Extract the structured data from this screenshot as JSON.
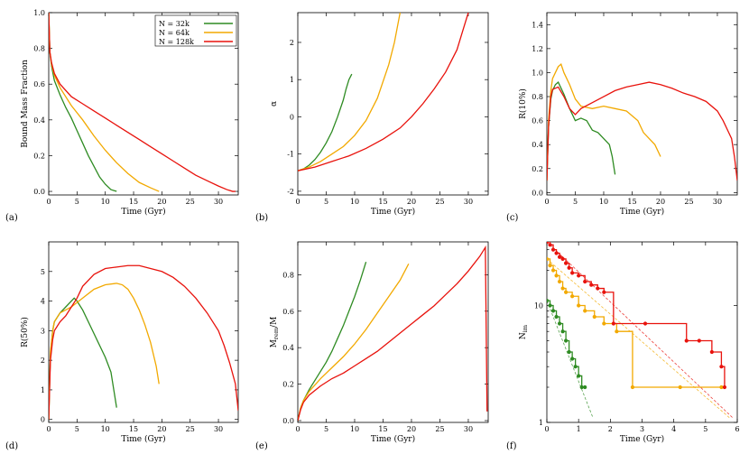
{
  "colors": {
    "green": "#2e8b22",
    "orange": "#f2a900",
    "red": "#e8120c"
  },
  "legend": {
    "entries": [
      {
        "label": "N =  32k",
        "color": "#2e8b22"
      },
      {
        "label": "N =  64k",
        "color": "#f2a900"
      },
      {
        "label": "N = 128k",
        "color": "#e8120c"
      }
    ]
  },
  "chart_data": [
    {
      "panel": "(a)",
      "type": "line",
      "xlabel": "Time (Gyr)",
      "ylabel": "Bound Mass Fraction",
      "xlim": [
        0,
        33.5
      ],
      "ylim": [
        -0.02,
        1.0
      ],
      "xticks": [
        0,
        5,
        10,
        15,
        20,
        25,
        30
      ],
      "yticks": [
        0.0,
        0.2,
        0.4,
        0.6,
        0.8,
        1.0
      ],
      "ytick_labels": [
        "0.0",
        "0.2",
        "0.4",
        "0.6",
        "0.8",
        "1.0"
      ],
      "series": [
        {
          "name": "N =  32k",
          "color": "#2e8b22",
          "x": [
            0,
            0.2,
            0.5,
            1,
            2,
            3,
            4,
            5,
            6,
            7,
            8,
            9,
            10,
            11,
            12
          ],
          "y": [
            1.0,
            0.78,
            0.7,
            0.62,
            0.54,
            0.47,
            0.41,
            0.34,
            0.27,
            0.2,
            0.14,
            0.08,
            0.04,
            0.01,
            0.0
          ]
        },
        {
          "name": "N =  64k",
          "color": "#f2a900",
          "x": [
            0,
            0.2,
            0.5,
            1,
            2,
            4,
            6,
            8,
            10,
            12,
            14,
            16,
            18,
            19.5
          ],
          "y": [
            1.0,
            0.78,
            0.71,
            0.65,
            0.58,
            0.48,
            0.4,
            0.31,
            0.23,
            0.16,
            0.1,
            0.05,
            0.02,
            0.0
          ]
        },
        {
          "name": "N = 128k",
          "color": "#e8120c",
          "x": [
            0,
            0.2,
            0.5,
            1,
            2,
            4,
            6,
            8,
            10,
            12,
            14,
            16,
            18,
            20,
            22,
            24,
            26,
            28,
            30,
            31.5,
            32.5,
            33
          ],
          "y": [
            1.0,
            0.78,
            0.72,
            0.66,
            0.6,
            0.53,
            0.49,
            0.45,
            0.41,
            0.37,
            0.33,
            0.29,
            0.25,
            0.21,
            0.17,
            0.13,
            0.09,
            0.06,
            0.03,
            0.01,
            0.0,
            0.0
          ]
        }
      ]
    },
    {
      "panel": "(b)",
      "type": "line",
      "xlabel": "Time (Gyr)",
      "ylabel": "α",
      "xlim": [
        0,
        33.5
      ],
      "ylim": [
        -2.1,
        2.8
      ],
      "xticks": [
        0,
        5,
        10,
        15,
        20,
        25,
        30
      ],
      "yticks": [
        -2,
        -1,
        0,
        1,
        2
      ],
      "ytick_labels": [
        "-2",
        "-1",
        "0",
        "1",
        "2"
      ],
      "series": [
        {
          "name": "N =  32k",
          "color": "#2e8b22",
          "x": [
            0,
            1,
            2,
            3,
            4,
            5,
            6,
            7,
            8,
            8.5,
            9,
            9.5
          ],
          "y": [
            -1.45,
            -1.4,
            -1.3,
            -1.15,
            -0.95,
            -0.7,
            -0.4,
            0.0,
            0.45,
            0.75,
            1.0,
            1.15
          ]
        },
        {
          "name": "N =  64k",
          "color": "#f2a900",
          "x": [
            0,
            2,
            4,
            6,
            8,
            10,
            12,
            14,
            16,
            17,
            18
          ],
          "y": [
            -1.45,
            -1.35,
            -1.2,
            -1.0,
            -0.8,
            -0.5,
            -0.1,
            0.5,
            1.4,
            2.0,
            2.8
          ]
        },
        {
          "name": "N = 128k",
          "color": "#e8120c",
          "x": [
            0,
            3,
            6,
            9,
            12,
            15,
            18,
            20,
            22,
            24,
            26,
            28,
            29,
            30
          ],
          "y": [
            -1.45,
            -1.35,
            -1.2,
            -1.05,
            -0.85,
            -0.6,
            -0.3,
            0.0,
            0.35,
            0.75,
            1.2,
            1.8,
            2.3,
            2.8
          ]
        }
      ]
    },
    {
      "panel": "(c)",
      "type": "line",
      "xlabel": "Time (Gyr)",
      "ylabel": "R(10%)",
      "xlim": [
        0,
        33.5
      ],
      "ylim": [
        -0.02,
        1.5
      ],
      "xticks": [
        0,
        5,
        10,
        15,
        20,
        25,
        30
      ],
      "yticks": [
        0.0,
        0.2,
        0.4,
        0.6,
        0.8,
        1.0,
        1.2,
        1.4
      ],
      "ytick_labels": [
        "0.0",
        "0.2",
        "0.4",
        "0.6",
        "0.8",
        "1.0",
        "1.2",
        "1.4"
      ],
      "series": [
        {
          "name": "N =  32k",
          "color": "#2e8b22",
          "x": [
            0,
            0.3,
            0.7,
            1,
            1.5,
            2,
            3,
            4,
            5,
            6,
            7,
            8,
            9,
            10,
            11,
            11.5,
            12
          ],
          "y": [
            0.1,
            0.55,
            0.78,
            0.85,
            0.9,
            0.92,
            0.82,
            0.7,
            0.6,
            0.62,
            0.6,
            0.52,
            0.5,
            0.45,
            0.4,
            0.3,
            0.15
          ]
        },
        {
          "name": "N =  64k",
          "color": "#f2a900",
          "x": [
            0,
            0.3,
            0.7,
            1,
            2,
            2.5,
            3,
            4,
            5,
            6,
            8,
            10,
            12,
            14,
            16,
            17,
            18,
            19,
            20
          ],
          "y": [
            0.1,
            0.6,
            0.85,
            0.95,
            1.05,
            1.07,
            1.0,
            0.9,
            0.78,
            0.72,
            0.7,
            0.72,
            0.7,
            0.68,
            0.6,
            0.5,
            0.45,
            0.4,
            0.3
          ]
        },
        {
          "name": "N = 128k",
          "color": "#e8120c",
          "x": [
            0,
            0.3,
            0.7,
            1,
            2,
            3,
            4,
            5,
            6,
            8,
            10,
            12,
            14,
            16,
            18,
            20,
            22,
            24,
            26,
            28,
            30,
            31,
            32,
            32.5,
            33,
            33.5
          ],
          "y": [
            0.1,
            0.55,
            0.8,
            0.86,
            0.88,
            0.8,
            0.7,
            0.65,
            0.7,
            0.75,
            0.8,
            0.85,
            0.88,
            0.9,
            0.92,
            0.9,
            0.87,
            0.83,
            0.8,
            0.76,
            0.68,
            0.6,
            0.5,
            0.45,
            0.3,
            0.1
          ]
        }
      ]
    },
    {
      "panel": "(d)",
      "type": "line",
      "xlabel": "Time (Gyr)",
      "ylabel": "R(50%)",
      "xlim": [
        0,
        33.5
      ],
      "ylim": [
        -0.1,
        6.0
      ],
      "xticks": [
        0,
        5,
        10,
        15,
        20,
        25,
        30
      ],
      "yticks": [
        0,
        1,
        2,
        3,
        4,
        5
      ],
      "ytick_labels": [
        "0",
        "1",
        "2",
        "3",
        "4",
        "5"
      ],
      "series": [
        {
          "name": "N =  32k",
          "color": "#2e8b22",
          "x": [
            0,
            0.3,
            0.7,
            1,
            2,
            3,
            4,
            4.5,
            5,
            6,
            7,
            8,
            9,
            10,
            11,
            11.5,
            12
          ],
          "y": [
            0.0,
            2.2,
            3.0,
            3.3,
            3.6,
            3.8,
            4.0,
            4.1,
            4.0,
            3.7,
            3.3,
            2.9,
            2.5,
            2.1,
            1.6,
            1.0,
            0.4
          ]
        },
        {
          "name": "N =  64k",
          "color": "#f2a900",
          "x": [
            0,
            0.3,
            0.7,
            1,
            2,
            4,
            6,
            8,
            10,
            12,
            13,
            14,
            15,
            16,
            17,
            18,
            19,
            19.5
          ],
          "y": [
            0.0,
            2.3,
            3.0,
            3.3,
            3.6,
            3.8,
            4.1,
            4.4,
            4.55,
            4.6,
            4.55,
            4.4,
            4.1,
            3.7,
            3.2,
            2.6,
            1.8,
            1.2
          ]
        },
        {
          "name": "N = 128k",
          "color": "#e8120c",
          "x": [
            0,
            0.3,
            0.7,
            1,
            2,
            3,
            4,
            5,
            6,
            8,
            10,
            12,
            14,
            16,
            18,
            20,
            22,
            24,
            26,
            28,
            30,
            31,
            32,
            33,
            33.5
          ],
          "y": [
            0.0,
            2.0,
            2.7,
            3.0,
            3.3,
            3.5,
            3.8,
            4.1,
            4.5,
            4.9,
            5.1,
            5.15,
            5.2,
            5.2,
            5.1,
            5.0,
            4.8,
            4.5,
            4.1,
            3.6,
            3.0,
            2.5,
            1.9,
            1.2,
            0.3
          ]
        }
      ]
    },
    {
      "panel": "(e)",
      "type": "line",
      "xlabel": "Time (Gyr)",
      "ylabel": "M_rem/M",
      "xlim": [
        0,
        33.5
      ],
      "ylim": [
        -0.01,
        0.98
      ],
      "xticks": [
        0,
        5,
        10,
        15,
        20,
        25,
        30
      ],
      "yticks": [
        0.0,
        0.2,
        0.4,
        0.6,
        0.8
      ],
      "ytick_labels": [
        "0.0",
        "0.2",
        "0.4",
        "0.6",
        "0.8"
      ],
      "series": [
        {
          "name": "N =  32k",
          "color": "#2e8b22",
          "x": [
            0,
            0.5,
            1,
            2,
            3,
            4,
            5,
            6,
            7,
            8,
            9,
            10,
            11,
            11.5,
            12
          ],
          "y": [
            0.0,
            0.07,
            0.11,
            0.17,
            0.22,
            0.27,
            0.32,
            0.38,
            0.45,
            0.52,
            0.6,
            0.68,
            0.77,
            0.82,
            0.87
          ]
        },
        {
          "name": "N =  64k",
          "color": "#f2a900",
          "x": [
            0,
            0.5,
            1,
            2,
            4,
            6,
            8,
            10,
            12,
            14,
            16,
            18,
            19,
            19.5
          ],
          "y": [
            0.0,
            0.07,
            0.11,
            0.16,
            0.23,
            0.29,
            0.35,
            0.42,
            0.5,
            0.59,
            0.68,
            0.77,
            0.83,
            0.86
          ]
        },
        {
          "name": "N = 128k",
          "color": "#e8120c",
          "x": [
            0,
            0.5,
            1,
            2,
            4,
            6,
            8,
            10,
            12,
            14,
            16,
            18,
            20,
            22,
            24,
            26,
            28,
            30,
            32,
            33,
            33.3
          ],
          "y": [
            0.0,
            0.06,
            0.1,
            0.14,
            0.19,
            0.23,
            0.26,
            0.3,
            0.34,
            0.38,
            0.43,
            0.48,
            0.53,
            0.58,
            0.63,
            0.69,
            0.75,
            0.82,
            0.9,
            0.95,
            0.05
          ]
        }
      ]
    },
    {
      "panel": "(f)",
      "type": "line",
      "xlabel": "Time (Gyr)",
      "ylabel": "N_im",
      "xlim": [
        0,
        6
      ],
      "ylim": [
        1,
        35
      ],
      "yscale": "log",
      "xticks": [
        0,
        1,
        2,
        3,
        4,
        5,
        6
      ],
      "yticks": [
        1,
        10
      ],
      "ytick_labels": [
        "1",
        "10"
      ],
      "series": [
        {
          "name": "N =  32k",
          "color": "#2e8b22",
          "step": true,
          "x": [
            0,
            0.1,
            0.2,
            0.3,
            0.4,
            0.5,
            0.6,
            0.7,
            0.8,
            0.9,
            1.0,
            1.1,
            1.2
          ],
          "y": [
            11,
            10,
            9,
            8,
            7,
            6,
            5,
            4,
            3.5,
            3,
            2.5,
            2,
            2
          ]
        },
        {
          "name": "N =  64k",
          "color": "#f2a900",
          "step": true,
          "x": [
            0,
            0.1,
            0.2,
            0.3,
            0.4,
            0.5,
            0.6,
            0.8,
            1.0,
            1.2,
            1.5,
            1.8,
            2.2,
            2.7,
            4.2,
            5.5
          ],
          "y": [
            25,
            22,
            20,
            18,
            16,
            14,
            13,
            12,
            10,
            9,
            8,
            7,
            6,
            2,
            2,
            2
          ]
        },
        {
          "name": "N = 128k",
          "color": "#e8120c",
          "step": true,
          "x": [
            0,
            0.1,
            0.2,
            0.3,
            0.4,
            0.5,
            0.6,
            0.7,
            0.8,
            1.0,
            1.2,
            1.4,
            1.6,
            1.8,
            2.1,
            3.1,
            4.4,
            4.8,
            5.2,
            5.5,
            5.6
          ],
          "y": [
            35,
            33,
            30,
            28,
            26,
            25,
            23,
            21,
            19,
            18,
            16,
            15,
            14,
            13,
            7,
            7,
            5,
            5,
            4,
            3,
            2
          ]
        }
      ]
    }
  ]
}
